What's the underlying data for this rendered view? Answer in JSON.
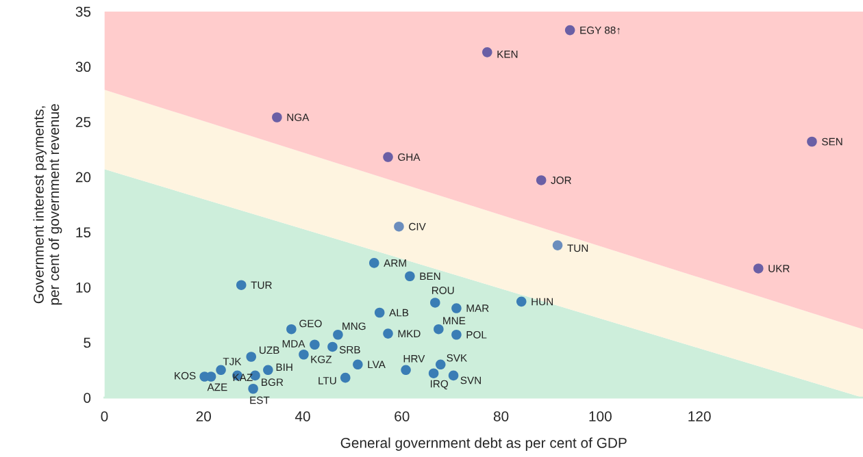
{
  "chart_data": {
    "type": "scatter",
    "xlabel": "General government debt as per cent of GDP",
    "ylabel": "Government interest payments, per cent of government revenue",
    "xlim": [
      0,
      153
    ],
    "ylim": [
      0,
      35
    ],
    "xticks": [
      0,
      20,
      40,
      60,
      80,
      100,
      120
    ],
    "yticks": [
      0,
      5,
      10,
      15,
      20,
      25,
      30,
      35
    ],
    "grid": false,
    "legend": false,
    "stacked": true,
    "series": [
      {
        "type": "area",
        "color": "#cdeedb",
        "x": [
          0,
          153
        ],
        "values": [
          20.7,
          0
        ]
      },
      {
        "type": "area",
        "color": "#fef4e0",
        "x": [
          0,
          153
        ],
        "values": [
          7.2,
          6.2
        ]
      },
      {
        "type": "area",
        "color": "#ffcccc",
        "x": [
          0,
          153
        ],
        "values": [
          7.1,
          28.8
        ]
      },
      {
        "marker": "circle",
        "x": [
          93.9,
          77.2,
          34.8,
          57.2,
          88.1,
          142.7,
          59.4,
          91.4,
          131.9,
          54.4,
          61.6,
          27.6,
          66.7,
          71.0,
          84.1,
          55.5,
          37.7,
          47.1,
          67.4,
          57.2,
          71.0,
          42.4,
          46.0,
          40.2,
          23.5,
          29.6,
          33.0,
          20.2,
          21.5,
          26.8,
          30.4,
          30.0,
          51.1,
          48.6,
          60.8,
          66.4,
          67.8,
          70.4
        ],
        "values": [
          33.3,
          31.3,
          25.4,
          21.8,
          19.7,
          23.2,
          15.5,
          13.8,
          11.7,
          12.2,
          11.0,
          10.2,
          8.6,
          8.1,
          8.7,
          7.7,
          6.2,
          5.7,
          6.2,
          5.8,
          5.7,
          4.8,
          4.6,
          3.9,
          2.5,
          3.7,
          2.5,
          1.9,
          1.9,
          2.0,
          2.0,
          0.8,
          3.0,
          1.8,
          2.5,
          2.2,
          3.0,
          2.0
        ],
        "colors": [
          "#6a5fa5",
          "#6a5fa5",
          "#6a5fa5",
          "#6a5fa5",
          "#6a5fa5",
          "#6a5fa5",
          "#6b8dbd",
          "#6b8dbd",
          "#6a5fa5",
          "#3a7db5",
          "#3a7db5",
          "#3a7db5",
          "#3a7db5",
          "#3a7db5",
          "#3a7db5",
          "#3a7db5",
          "#3a7db5",
          "#3a7db5",
          "#3a7db5",
          "#3a7db5",
          "#3a7db5",
          "#3a7db5",
          "#3a7db5",
          "#3a7db5",
          "#3a7db5",
          "#3a7db5",
          "#3a7db5",
          "#3a7db5",
          "#3a7db5",
          "#3a7db5",
          "#3a7db5",
          "#3a7db5",
          "#3a7db5",
          "#3a7db5",
          "#3a7db5",
          "#3a7db5",
          "#3a7db5",
          "#3a7db5"
        ]
      }
    ],
    "annotations": [
      {
        "text": "EGY 88↑",
        "x": 93.9,
        "y": 33.3
      },
      {
        "text": "KEN",
        "x": 77.2,
        "y": 31.3
      },
      {
        "text": "NGA",
        "x": 34.8,
        "y": 25.4
      },
      {
        "text": "GHA",
        "x": 57.2,
        "y": 21.8
      },
      {
        "text": "JOR",
        "x": 88.1,
        "y": 19.7
      },
      {
        "text": "SEN",
        "x": 142.7,
        "y": 23.2
      },
      {
        "text": "CIV",
        "x": 59.4,
        "y": 15.5
      },
      {
        "text": "TUN",
        "x": 91.4,
        "y": 13.8
      },
      {
        "text": "UKR",
        "x": 131.9,
        "y": 11.7
      },
      {
        "text": "ARM",
        "x": 54.4,
        "y": 12.2
      },
      {
        "text": "BEN",
        "x": 61.6,
        "y": 11.0
      },
      {
        "text": "TUR",
        "x": 27.6,
        "y": 10.2
      },
      {
        "text": "ROU",
        "x": 66.7,
        "y": 8.6
      },
      {
        "text": "MAR",
        "x": 71.0,
        "y": 8.1
      },
      {
        "text": "HUN",
        "x": 84.1,
        "y": 8.7
      },
      {
        "text": "ALB",
        "x": 55.5,
        "y": 7.7
      },
      {
        "text": "GEO",
        "x": 37.7,
        "y": 6.2
      },
      {
        "text": "MNG",
        "x": 47.1,
        "y": 5.7
      },
      {
        "text": "MNE",
        "x": 67.4,
        "y": 6.2
      },
      {
        "text": "MKD",
        "x": 57.2,
        "y": 5.8
      },
      {
        "text": "POL",
        "x": 71.0,
        "y": 5.7
      },
      {
        "text": "MDA",
        "x": 42.4,
        "y": 4.8
      },
      {
        "text": "SRB",
        "x": 46.0,
        "y": 4.6
      },
      {
        "text": "KGZ",
        "x": 40.2,
        "y": 3.9
      },
      {
        "text": "TJK",
        "x": 23.5,
        "y": 2.5
      },
      {
        "text": "UZB",
        "x": 29.6,
        "y": 3.7
      },
      {
        "text": "BIH",
        "x": 33.0,
        "y": 2.5
      },
      {
        "text": "KOS",
        "x": 20.2,
        "y": 1.9
      },
      {
        "text": "AZE",
        "x": 21.5,
        "y": 1.9
      },
      {
        "text": "KAZ",
        "x": 26.8,
        "y": 2.0
      },
      {
        "text": "BGR",
        "x": 30.4,
        "y": 2.0
      },
      {
        "text": "EST",
        "x": 30.0,
        "y": 0.8
      },
      {
        "text": "LVA",
        "x": 51.1,
        "y": 3.0
      },
      {
        "text": "LTU",
        "x": 48.6,
        "y": 1.8
      },
      {
        "text": "HRV",
        "x": 60.8,
        "y": 2.5
      },
      {
        "text": "IRQ",
        "x": 66.4,
        "y": 2.2
      },
      {
        "text": "SVK",
        "x": 67.8,
        "y": 3.0
      },
      {
        "text": "SVN",
        "x": 70.4,
        "y": 2.0
      }
    ]
  }
}
